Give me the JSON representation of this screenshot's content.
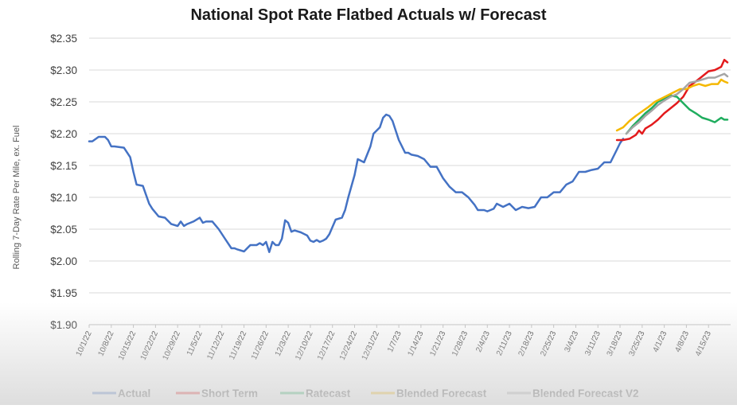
{
  "chart_data": {
    "type": "line",
    "title": "National Spot Rate Flatbed Actuals w/ Forecast",
    "xlabel": "",
    "ylabel": "Rolling 7-Day Rate Per Mile, ex. Fuel",
    "ylim": [
      1.9,
      2.35
    ],
    "y_ticks": [
      1.9,
      1.95,
      2.0,
      2.05,
      2.1,
      2.15,
      2.2,
      2.25,
      2.3,
      2.35
    ],
    "y_tick_labels": [
      "$1.90",
      "$1.95",
      "$2.00",
      "$2.05",
      "$2.10",
      "$2.15",
      "$2.20",
      "$2.25",
      "$2.30",
      "$2.35"
    ],
    "grid": "horizontal",
    "legend_position": "bottom",
    "x_ticks": [
      0,
      7,
      14,
      21,
      28,
      35,
      42,
      49,
      56,
      63,
      70,
      77,
      84,
      91,
      98,
      105,
      112,
      119,
      126,
      133,
      140,
      147,
      154,
      161,
      168,
      175,
      182,
      189,
      196
    ],
    "x_tick_labels": [
      "10/1/22",
      "10/8/22",
      "10/15/22",
      "10/22/22",
      "10/29/22",
      "11/5/22",
      "11/12/22",
      "11/19/22",
      "11/26/22",
      "12/3/22",
      "12/10/22",
      "12/17/22",
      "12/24/22",
      "12/31/22",
      "1/7/23",
      "1/14/23",
      "1/21/23",
      "1/28/23",
      "2/4/23",
      "2/11/23",
      "2/18/23",
      "2/25/23",
      "3/4/23",
      "3/11/23",
      "3/18/23",
      "3/25/23",
      "4/1/23",
      "4/8/23",
      "4/15/23"
    ],
    "xlim": [
      0,
      203
    ],
    "series": [
      {
        "name": "Actual",
        "color": "#4472c4",
        "x": [
          0,
          1,
          3,
          5,
          6,
          7,
          8,
          11,
          13,
          14,
          15,
          17,
          19,
          20,
          22,
          24,
          26,
          28,
          29,
          30,
          31,
          33,
          35,
          36,
          37,
          39,
          41,
          43,
          45,
          46,
          47,
          49,
          51,
          53,
          54,
          55,
          56,
          57,
          58,
          59,
          60,
          61,
          62,
          63,
          64,
          65,
          67,
          69,
          70,
          71,
          72,
          73,
          74,
          75,
          76,
          78,
          80,
          81,
          82,
          84,
          85,
          87,
          89,
          90,
          92,
          93,
          94,
          95,
          96,
          98,
          100,
          101,
          102,
          104,
          106,
          108,
          110,
          112,
          114,
          116,
          118,
          120,
          122,
          123,
          125,
          126,
          127,
          128,
          129,
          131,
          133,
          135,
          137,
          139,
          141,
          143,
          145,
          147,
          149,
          151,
          153,
          155,
          157,
          159,
          161,
          163,
          165,
          167,
          168,
          169
        ],
        "y": [
          2.188,
          2.188,
          2.195,
          2.195,
          2.19,
          2.18,
          2.18,
          2.178,
          2.163,
          2.14,
          2.12,
          2.118,
          2.09,
          2.082,
          2.07,
          2.068,
          2.058,
          2.055,
          2.062,
          2.055,
          2.058,
          2.062,
          2.068,
          2.06,
          2.062,
          2.062,
          2.05,
          2.035,
          2.02,
          2.02,
          2.018,
          2.015,
          2.025,
          2.025,
          2.028,
          2.025,
          2.03,
          2.014,
          2.03,
          2.025,
          2.025,
          2.035,
          2.064,
          2.06,
          2.046,
          2.048,
          2.045,
          2.04,
          2.032,
          2.03,
          2.033,
          2.03,
          2.032,
          2.035,
          2.042,
          2.065,
          2.068,
          2.08,
          2.1,
          2.135,
          2.16,
          2.155,
          2.18,
          2.2,
          2.21,
          2.225,
          2.23,
          2.228,
          2.22,
          2.19,
          2.17,
          2.17,
          2.167,
          2.165,
          2.16,
          2.148,
          2.148,
          2.13,
          2.117,
          2.108,
          2.108,
          2.1,
          2.088,
          2.08,
          2.08,
          2.078,
          2.08,
          2.082,
          2.09,
          2.085,
          2.09,
          2.08,
          2.085,
          2.083,
          2.085,
          2.1,
          2.1,
          2.108,
          2.108,
          2.12,
          2.125,
          2.14,
          2.14,
          2.143,
          2.145,
          2.155,
          2.155,
          2.175,
          2.185,
          2.192
        ]
      },
      {
        "name": "Short Term",
        "color": "#e31a1c",
        "x": [
          167,
          169,
          171,
          173,
          174,
          175,
          176,
          178,
          180,
          182,
          184,
          186,
          188,
          190,
          192,
          194,
          196,
          198,
          200,
          201,
          202
        ],
        "y": [
          2.19,
          2.19,
          2.192,
          2.198,
          2.205,
          2.2,
          2.208,
          2.214,
          2.222,
          2.232,
          2.24,
          2.248,
          2.258,
          2.275,
          2.282,
          2.29,
          2.298,
          2.3,
          2.305,
          2.316,
          2.312
        ]
      },
      {
        "name": "Ratecast",
        "color": "#1fad5e",
        "x": [
          170,
          172,
          174,
          176,
          178,
          180,
          182,
          184,
          186,
          188,
          190,
          192,
          194,
          196,
          198,
          200,
          201,
          202
        ],
        "y": [
          2.2,
          2.212,
          2.222,
          2.232,
          2.24,
          2.25,
          2.255,
          2.26,
          2.258,
          2.248,
          2.238,
          2.232,
          2.225,
          2.222,
          2.218,
          2.225,
          2.222,
          2.222
        ]
      },
      {
        "name": "Blended Forecast",
        "color": "#f5b800",
        "x": [
          167,
          169,
          171,
          173,
          175,
          177,
          179,
          181,
          183,
          185,
          187,
          189,
          191,
          193,
          195,
          197,
          199,
          200,
          201,
          202
        ],
        "y": [
          2.205,
          2.21,
          2.22,
          2.228,
          2.235,
          2.242,
          2.25,
          2.255,
          2.26,
          2.265,
          2.27,
          2.27,
          2.275,
          2.278,
          2.275,
          2.278,
          2.278,
          2.285,
          2.282,
          2.28
        ]
      },
      {
        "name": "Blended Forecast V2",
        "color": "#a5a5a5",
        "x": [
          170,
          172,
          174,
          176,
          178,
          180,
          182,
          184,
          186,
          188,
          190,
          192,
          194,
          196,
          198,
          200,
          201,
          202
        ],
        "y": [
          2.2,
          2.21,
          2.218,
          2.228,
          2.236,
          2.245,
          2.252,
          2.258,
          2.262,
          2.27,
          2.28,
          2.282,
          2.285,
          2.288,
          2.288,
          2.292,
          2.294,
          2.29
        ]
      }
    ]
  }
}
